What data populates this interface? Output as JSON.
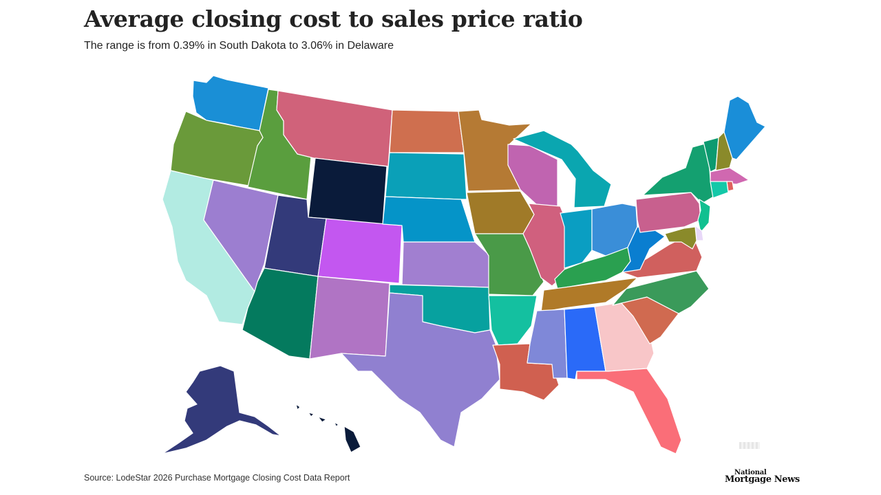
{
  "header": {
    "title": "Average closing cost to sales price ratio",
    "subtitle": "The range is from 0.39% in South Dakota to 3.06% in Delaware"
  },
  "footer": {
    "source": "Source: LodeStar 2026 Purchase Mortgage Closing Cost Data Report",
    "brand_line1": "National",
    "brand_line2": "Mortgage News"
  },
  "map": {
    "regions": [
      {
        "name": "Washington",
        "color": "#1a8fd6"
      },
      {
        "name": "Oregon",
        "color": "#6a9a3a"
      },
      {
        "name": "California",
        "color": "#b2ebe2"
      },
      {
        "name": "Idaho",
        "color": "#5a9e3e"
      },
      {
        "name": "Nevada",
        "color": "#9c7ed0"
      },
      {
        "name": "Montana",
        "color": "#d0627a"
      },
      {
        "name": "Wyoming",
        "color": "#0a1b3a"
      },
      {
        "name": "Utah",
        "color": "#333a7a"
      },
      {
        "name": "Colorado",
        "color": "#c357f0"
      },
      {
        "name": "Arizona",
        "color": "#047a5e"
      },
      {
        "name": "New Mexico",
        "color": "#b074c4"
      },
      {
        "name": "North Dakota",
        "color": "#cf6f4f"
      },
      {
        "name": "South Dakota",
        "color": "#0aa0b8"
      },
      {
        "name": "Nebraska",
        "color": "#0594c8"
      },
      {
        "name": "Kansas",
        "color": "#a17fd0"
      },
      {
        "name": "Oklahoma",
        "color": "#07a19f"
      },
      {
        "name": "Texas",
        "color": "#9080d0"
      },
      {
        "name": "Minnesota",
        "color": "#b57a34"
      },
      {
        "name": "Iowa",
        "color": "#a07a28"
      },
      {
        "name": "Missouri",
        "color": "#4a9a48"
      },
      {
        "name": "Arkansas",
        "color": "#14c0a0"
      },
      {
        "name": "Louisiana",
        "color": "#d06050"
      },
      {
        "name": "Wisconsin",
        "color": "#c064b0"
      },
      {
        "name": "Illinois",
        "color": "#d0607e"
      },
      {
        "name": "Michigan",
        "color": "#0aa6b0"
      },
      {
        "name": "Indiana",
        "color": "#0a9ec2"
      },
      {
        "name": "Ohio",
        "color": "#3a8ed8"
      },
      {
        "name": "Kentucky",
        "color": "#2aa050"
      },
      {
        "name": "Tennessee",
        "color": "#b07a28"
      },
      {
        "name": "Mississippi",
        "color": "#7f88d8"
      },
      {
        "name": "Alabama",
        "color": "#2a6af8"
      },
      {
        "name": "Georgia",
        "color": "#f8c6c8"
      },
      {
        "name": "Florida",
        "color": "#fa6e78"
      },
      {
        "name": "South Carolina",
        "color": "#d06a50"
      },
      {
        "name": "North Carolina",
        "color": "#3a9a5a"
      },
      {
        "name": "Virginia",
        "color": "#d0605e"
      },
      {
        "name": "West Virginia",
        "color": "#0a7ed0"
      },
      {
        "name": "Pennsylvania",
        "color": "#c8608e"
      },
      {
        "name": "New York",
        "color": "#14a070"
      },
      {
        "name": "Vermont",
        "color": "#0c9a70"
      },
      {
        "name": "New Hampshire",
        "color": "#8a8a2a"
      },
      {
        "name": "Maine",
        "color": "#1a8ed8"
      },
      {
        "name": "Massachusetts",
        "color": "#d068b0"
      },
      {
        "name": "Rhode Island",
        "color": "#e0605e"
      },
      {
        "name": "Connecticut",
        "color": "#14c8a8"
      },
      {
        "name": "New Jersey",
        "color": "#10c090"
      },
      {
        "name": "Delaware",
        "color": "#e8d8f8"
      },
      {
        "name": "Maryland",
        "color": "#8a8a2a"
      },
      {
        "name": "Alaska",
        "color": "#333a7a"
      },
      {
        "name": "Hawaii",
        "color": "#0a1b3a"
      }
    ]
  }
}
